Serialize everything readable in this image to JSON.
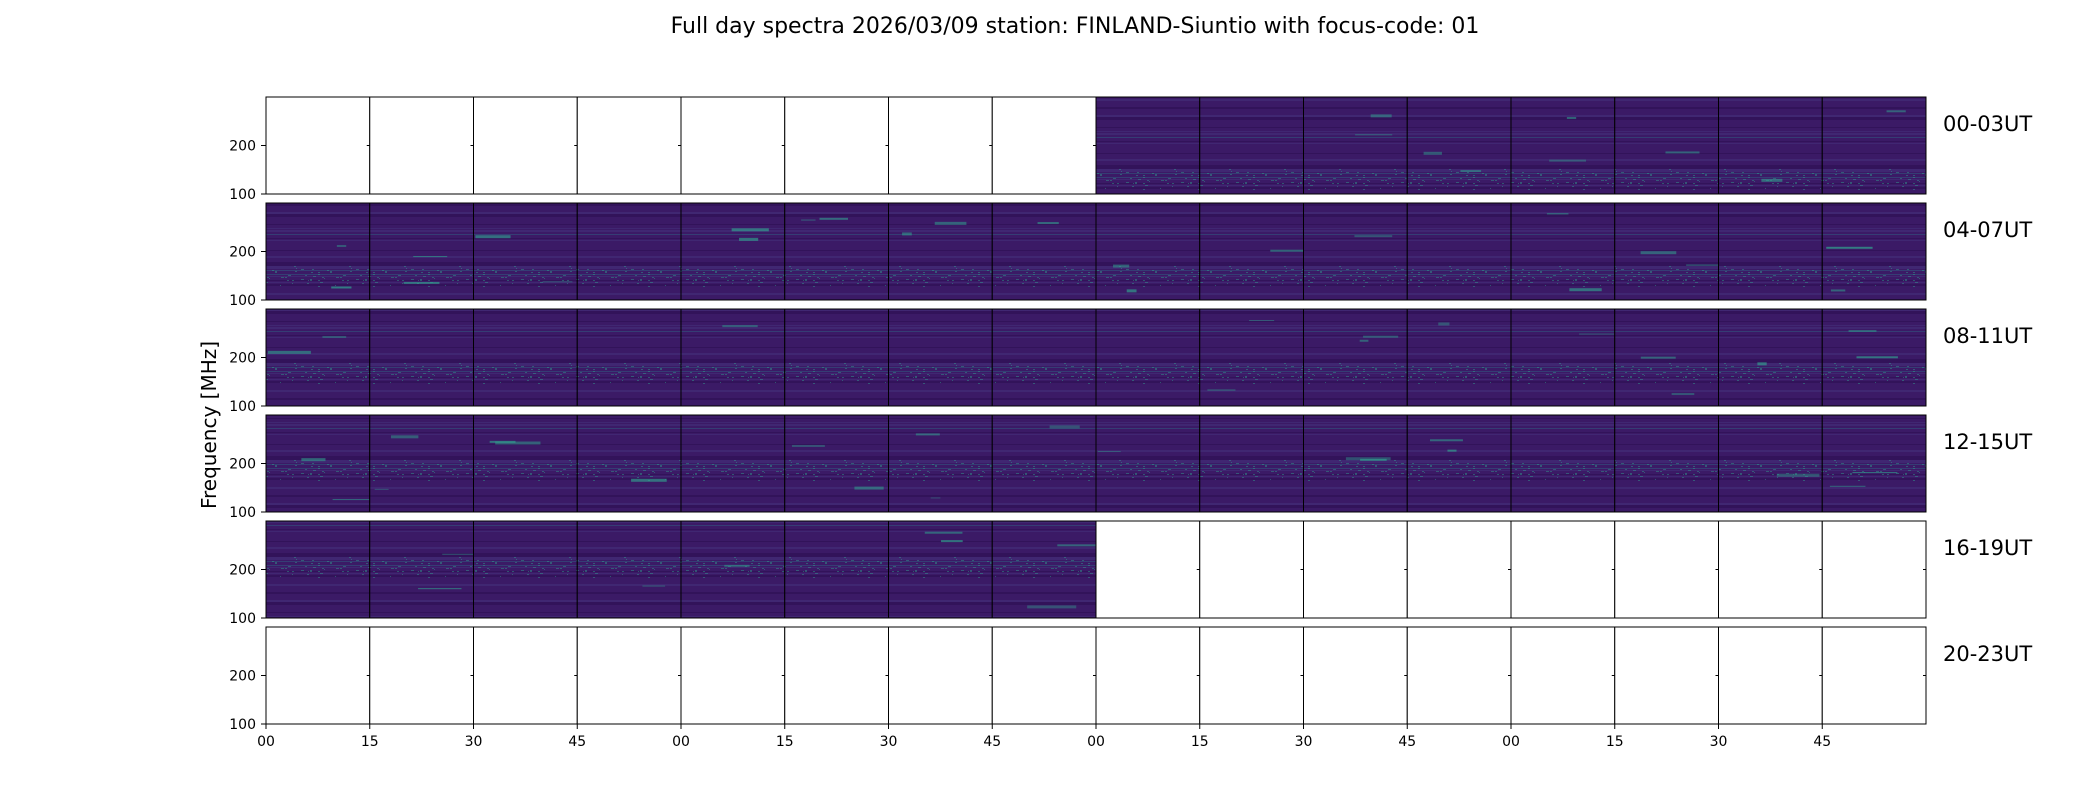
{
  "chart_data": {
    "type": "heatmap",
    "title": "Full day spectra 2026/03/09 station: FINLAND-Siuntio with focus-code: 01",
    "ylabel": "Frequency [MHz]",
    "xlabel": "",
    "ylim": [
      100,
      300
    ],
    "y_ticks": [
      "100",
      "200"
    ],
    "x_ticks": [
      "00",
      "15",
      "30",
      "45",
      "00",
      "15",
      "30",
      "45",
      "00",
      "15",
      "30",
      "45",
      "00",
      "15",
      "30",
      "45"
    ],
    "colormap": "viridis",
    "colors": {
      "background": "#ffffff",
      "empty_panel": "#ffffff",
      "spectrum_base": "#3b1a66",
      "spectrum_dark": "#2c0f52",
      "spectrum_mid": "#46337e",
      "spectrum_bright": "#31a58f",
      "spectrum_line": "#2a7f8e",
      "frame": "#000000"
    },
    "rows": [
      {
        "label": "00-03UT",
        "panels": [
          "empty",
          "empty",
          "empty",
          "empty",
          "empty",
          "empty",
          "empty",
          "empty",
          "data",
          "data",
          "data",
          "data",
          "data",
          "data",
          "data",
          "data"
        ]
      },
      {
        "label": "04-07UT",
        "panels": [
          "data",
          "data",
          "data",
          "data",
          "data",
          "data",
          "data",
          "data",
          "data",
          "data",
          "data",
          "data",
          "data",
          "data",
          "data",
          "data"
        ]
      },
      {
        "label": "08-11UT",
        "panels": [
          "data",
          "data",
          "data",
          "data",
          "data",
          "data",
          "data",
          "data",
          "data",
          "data",
          "data",
          "data",
          "data",
          "data",
          "data",
          "data"
        ]
      },
      {
        "label": "12-15UT",
        "panels": [
          "data",
          "data",
          "data",
          "data",
          "data",
          "data",
          "data",
          "data",
          "data",
          "data",
          "data",
          "data",
          "data",
          "data",
          "data",
          "data"
        ]
      },
      {
        "label": "16-19UT",
        "panels": [
          "data",
          "data",
          "data",
          "data",
          "data",
          "data",
          "data",
          "data",
          "empty",
          "empty",
          "empty",
          "empty",
          "empty",
          "empty",
          "empty",
          "empty"
        ]
      },
      {
        "label": "20-23UT",
        "panels": [
          "empty",
          "empty",
          "empty",
          "empty",
          "empty",
          "empty",
          "empty",
          "empty",
          "empty",
          "empty",
          "empty",
          "empty",
          "empty",
          "empty",
          "empty",
          "empty"
        ]
      }
    ]
  }
}
